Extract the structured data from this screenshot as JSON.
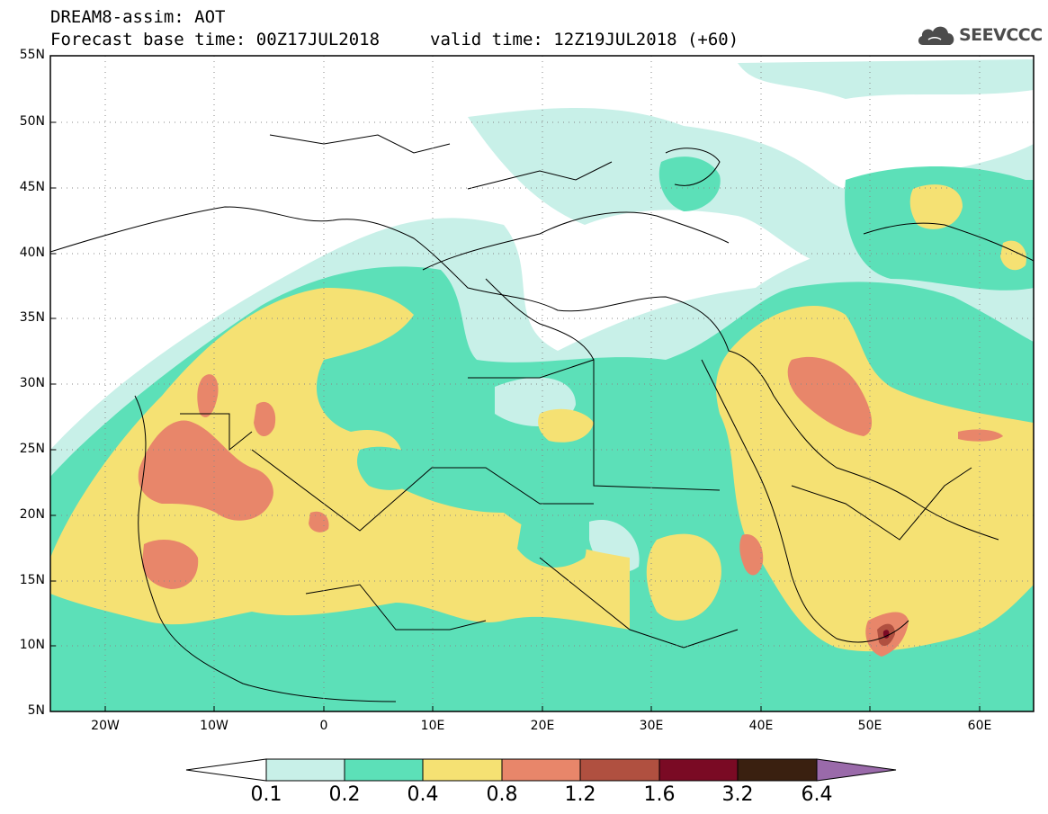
{
  "header": {
    "line1": "DREAM8-assim: AOT",
    "line2": "Forecast base time: 00Z17JUL2018",
    "line3": "valid time: 12Z19JUL2018 (+60)"
  },
  "logo": {
    "text": "SEEVCCC",
    "icon": "cloud-icon"
  },
  "axes": {
    "lat_labels": [
      "55N",
      "50N",
      "45N",
      "40N",
      "35N",
      "30N",
      "25N",
      "20N",
      "15N",
      "10N",
      "5N"
    ],
    "lon_labels": [
      "20W",
      "10W",
      "0",
      "10E",
      "20E",
      "30E",
      "40E",
      "50E",
      "60E"
    ],
    "lat_range": [
      5,
      55
    ],
    "lon_range": [
      -25,
      65
    ],
    "grid": "dotted"
  },
  "colorbar": {
    "levels": [
      "0.1",
      "0.2",
      "0.4",
      "0.8",
      "1.2",
      "1.6",
      "3.2",
      "6.4"
    ],
    "colors": [
      "#ffffff",
      "#c8f0e8",
      "#5ce0b8",
      "#f5e173",
      "#e8866a",
      "#b05040",
      "#7a0a24",
      "#3a2010",
      "#9a6aaa"
    ]
  },
  "palette": {
    "light": "#c8f0e8",
    "green": "#5ce0b8",
    "yellow": "#f5e173",
    "orange": "#e8866a",
    "red": "#b05040",
    "darkred": "#7a0a24"
  }
}
